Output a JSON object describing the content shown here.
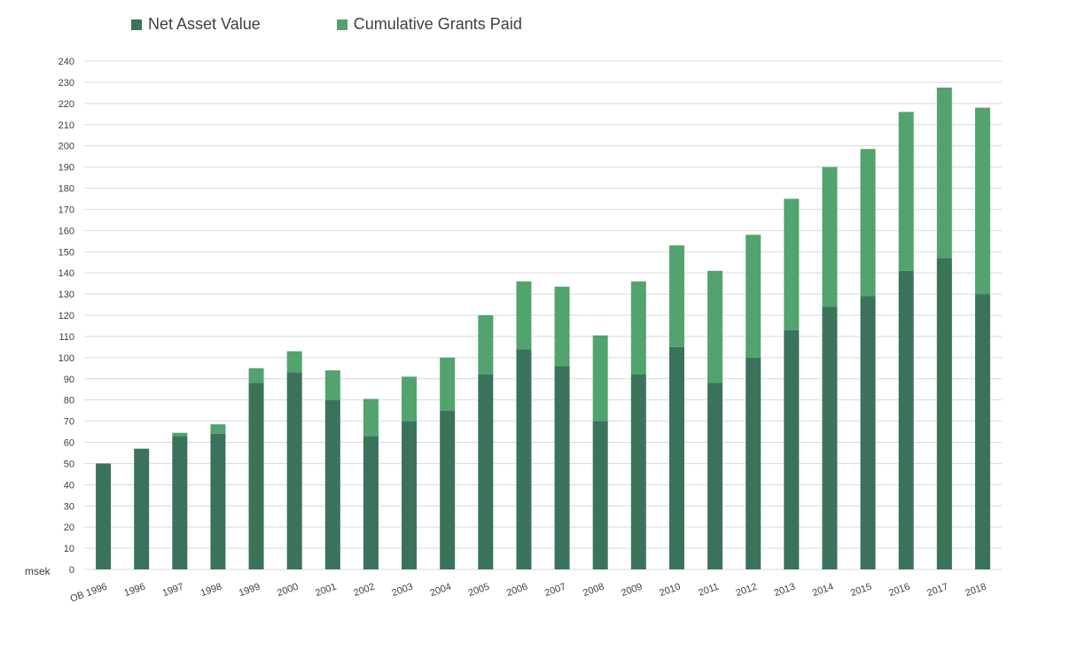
{
  "colors": {
    "net_asset_value": "#3a735a",
    "cumulative_grants": "#52a36d",
    "grid": "#d9d9d9"
  },
  "chart_data": {
    "type": "bar",
    "stacked": true,
    "categories": [
      "OB 1996",
      "1996",
      "1997",
      "1998",
      "1999",
      "2000",
      "2001",
      "2002",
      "2003",
      "2004",
      "2005",
      "2006",
      "2007",
      "2008",
      "2009",
      "2010",
      "2011",
      "2012",
      "2013",
      "2014",
      "2015",
      "2016",
      "2017",
      "2018"
    ],
    "series": [
      {
        "name": "Net Asset Value",
        "values": [
          50,
          57,
          63,
          64,
          88,
          93,
          80,
          63,
          70,
          75,
          92,
          104,
          96,
          70,
          92,
          105,
          88,
          100,
          113,
          124,
          129,
          141,
          147,
          130
        ]
      },
      {
        "name": "Cumulative Grants Paid",
        "values": [
          0,
          0,
          1.5,
          4.5,
          7,
          10,
          14,
          17.5,
          21,
          25,
          28,
          32,
          37.5,
          40.5,
          44,
          48,
          53,
          58,
          62,
          66,
          69.5,
          75,
          80.5,
          88
        ]
      }
    ],
    "y_ticks": [
      "0",
      "10",
      "20",
      "30",
      "40",
      "50",
      "60",
      "70",
      "80",
      "90",
      "100",
      "110",
      "120",
      "130",
      "140",
      "150",
      "160",
      "170",
      "180",
      "190",
      "200",
      "210",
      "220",
      "230",
      "240"
    ],
    "ylim": [
      0,
      240
    ],
    "ylabel": "msek",
    "grid": true,
    "legend_position": "top-left"
  }
}
